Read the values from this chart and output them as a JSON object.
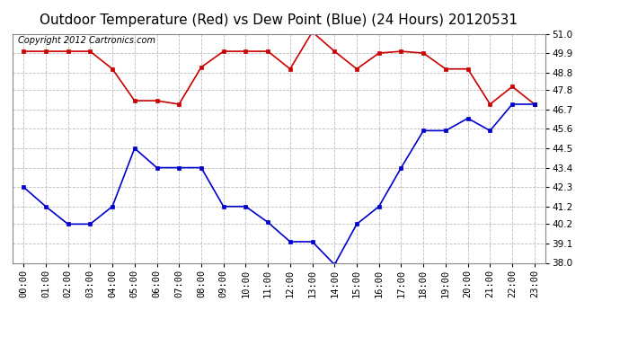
{
  "title": "Outdoor Temperature (Red) vs Dew Point (Blue) (24 Hours) 20120531",
  "copyright_text": "Copyright 2012 Cartronics.com",
  "x_labels": [
    "00:00",
    "01:00",
    "02:00",
    "03:00",
    "04:00",
    "05:00",
    "06:00",
    "07:00",
    "08:00",
    "09:00",
    "10:00",
    "11:00",
    "12:00",
    "13:00",
    "14:00",
    "15:00",
    "16:00",
    "17:00",
    "18:00",
    "19:00",
    "20:00",
    "21:00",
    "22:00",
    "23:00"
  ],
  "temp_red": [
    50.0,
    50.0,
    50.0,
    50.0,
    49.0,
    47.2,
    47.2,
    47.0,
    49.1,
    50.0,
    50.0,
    50.0,
    49.0,
    51.1,
    50.0,
    49.0,
    49.9,
    50.0,
    49.9,
    49.0,
    49.0,
    47.0,
    48.0,
    47.0
  ],
  "dew_blue": [
    42.3,
    41.2,
    40.2,
    40.2,
    41.2,
    44.5,
    43.4,
    43.4,
    43.4,
    41.2,
    41.2,
    40.3,
    39.2,
    39.2,
    37.9,
    40.2,
    41.2,
    43.4,
    45.5,
    45.5,
    46.2,
    45.5,
    47.0,
    47.0
  ],
  "ylim_min": 38.0,
  "ylim_max": 51.0,
  "yticks": [
    38.0,
    39.1,
    40.2,
    41.2,
    42.3,
    43.4,
    44.5,
    45.6,
    46.7,
    47.8,
    48.8,
    49.9,
    51.0
  ],
  "red_color": "#cc0000",
  "blue_color": "#0000cc",
  "grid_color": "#bbbbbb",
  "bg_color": "#ffffff",
  "title_fontsize": 11,
  "copyright_fontsize": 7,
  "tick_fontsize": 7.5
}
